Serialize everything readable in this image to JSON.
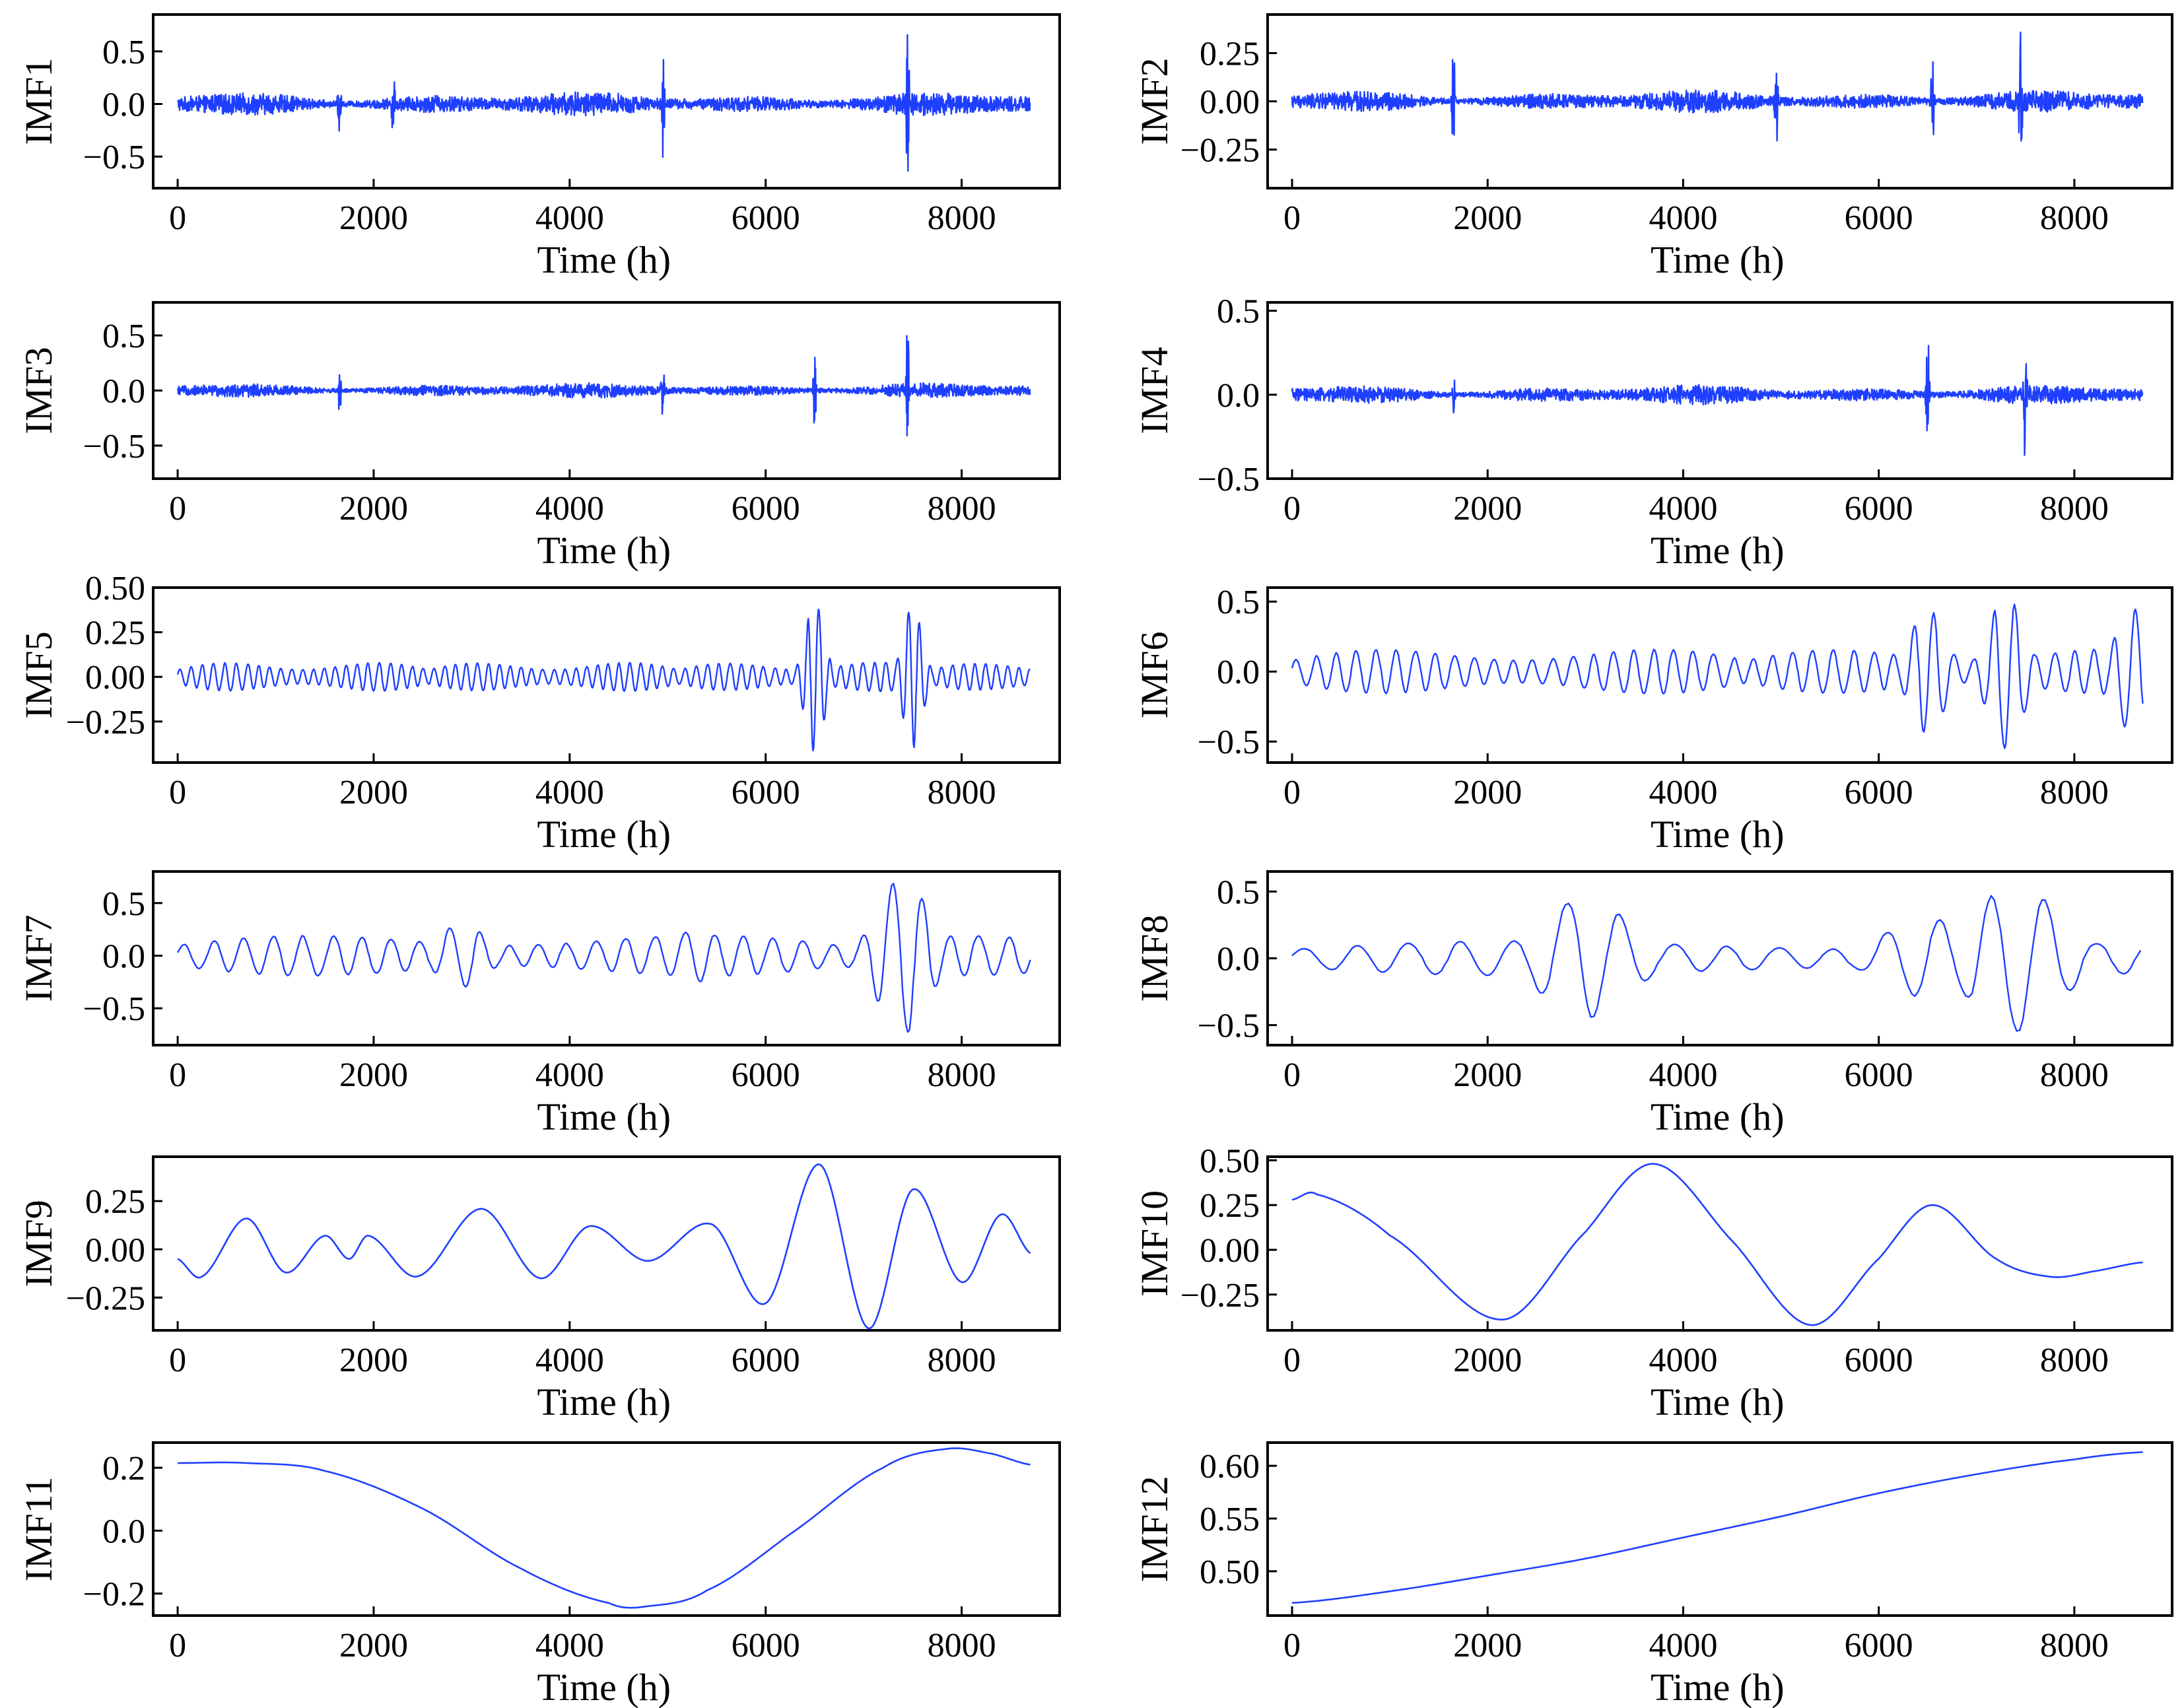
{
  "figure": {
    "line_color": "#1f3fff",
    "axis_color": "#000000"
  },
  "chart_data": [
    {
      "type": "line",
      "name": "imf1",
      "ylabel": "IMF1",
      "xlabel": "Time (h)",
      "xlim": [
        -250,
        9000
      ],
      "ylim": [
        -0.8,
        0.85
      ],
      "xticks": [
        0,
        2000,
        4000,
        6000,
        8000
      ],
      "yticks": [
        0.5,
        0.0,
        -0.5
      ],
      "ytick_labels": [
        "0.5",
        "0.0",
        "−0.5"
      ],
      "x_range": [
        0,
        8700
      ],
      "kind": "noise",
      "amplitude": 0.12,
      "bursts": [
        {
          "x": 1650,
          "a": 0.3
        },
        {
          "x": 2200,
          "a": 0.35
        },
        {
          "x": 4950,
          "a": 0.55
        },
        {
          "x": 7450,
          "a": 0.8
        }
      ]
    },
    {
      "type": "line",
      "name": "imf2",
      "ylabel": "IMF2",
      "xlabel": "Time (h)",
      "xlim": [
        -250,
        9000
      ],
      "ylim": [
        -0.45,
        0.45
      ],
      "xticks": [
        0,
        2000,
        4000,
        6000,
        8000
      ],
      "yticks": [
        0.25,
        0.0,
        -0.25
      ],
      "ytick_labels": [
        "0.25",
        "0.00",
        "−0.25"
      ],
      "x_range": [
        0,
        8700
      ],
      "kind": "noise",
      "amplitude": 0.06,
      "bursts": [
        {
          "x": 1650,
          "a": 0.35
        },
        {
          "x": 4950,
          "a": 0.3
        },
        {
          "x": 6550,
          "a": 0.3
        },
        {
          "x": 7450,
          "a": 0.42
        }
      ]
    },
    {
      "type": "line",
      "name": "imf3",
      "ylabel": "IMF3",
      "xlabel": "Time (h)",
      "xlim": [
        -250,
        9000
      ],
      "ylim": [
        -0.8,
        0.8
      ],
      "xticks": [
        0,
        2000,
        4000,
        6000,
        8000
      ],
      "yticks": [
        0.5,
        0.0,
        -0.5
      ],
      "ytick_labels": [
        "0.5",
        "0.0",
        "−0.5"
      ],
      "x_range": [
        0,
        8700
      ],
      "kind": "noise",
      "amplitude": 0.07,
      "bursts": [
        {
          "x": 1650,
          "a": 0.25
        },
        {
          "x": 4950,
          "a": 0.25
        },
        {
          "x": 6500,
          "a": 0.35
        },
        {
          "x": 7450,
          "a": 0.75
        }
      ]
    },
    {
      "type": "line",
      "name": "imf4",
      "ylabel": "IMF4",
      "xlabel": "Time (h)",
      "xlim": [
        -250,
        9000
      ],
      "ylim": [
        -0.5,
        0.55
      ],
      "xticks": [
        0,
        2000,
        4000,
        6000,
        8000
      ],
      "yticks": [
        0.5,
        0.0,
        -0.5
      ],
      "ytick_labels": [
        "0.5",
        "0.0",
        "−0.5"
      ],
      "x_range": [
        0,
        8700
      ],
      "kind": "noise",
      "amplitude": 0.06,
      "bursts": [
        {
          "x": 1650,
          "a": 0.15
        },
        {
          "x": 6500,
          "a": 0.42
        },
        {
          "x": 7500,
          "a": 0.5
        }
      ]
    },
    {
      "type": "line",
      "name": "imf5",
      "ylabel": "IMF5",
      "xlabel": "Time (h)",
      "xlim": [
        -250,
        9000
      ],
      "ylim": [
        -0.48,
        0.5
      ],
      "xticks": [
        0,
        2000,
        4000,
        6000,
        8000
      ],
      "yticks": [
        0.5,
        0.25,
        0.0,
        -0.25
      ],
      "ytick_labels": [
        "0.50",
        "0.25",
        "0.00",
        "−0.25"
      ],
      "x_range": [
        0,
        8700
      ],
      "kind": "osc",
      "amplitude": 0.09,
      "period": 110,
      "bursts": [
        {
          "x": 6500,
          "a": 0.42
        },
        {
          "x": 7500,
          "a": 0.4
        }
      ]
    },
    {
      "type": "line",
      "name": "imf6",
      "ylabel": "IMF6",
      "xlabel": "Time (h)",
      "xlim": [
        -250,
        9000
      ],
      "ylim": [
        -0.65,
        0.6
      ],
      "xticks": [
        0,
        2000,
        4000,
        6000,
        8000
      ],
      "yticks": [
        0.5,
        0.0,
        -0.5
      ],
      "ytick_labels": [
        "0.5",
        "0.0",
        "−0.5"
      ],
      "x_range": [
        0,
        8700
      ],
      "kind": "osc",
      "amplitude": 0.18,
      "period": 200,
      "bursts": [
        {
          "x": 6500,
          "a": 0.45
        },
        {
          "x": 7300,
          "a": 0.55
        },
        {
          "x": 8600,
          "a": 0.45
        }
      ]
    },
    {
      "type": "line",
      "name": "imf7",
      "ylabel": "IMF7",
      "xlabel": "Time (h)",
      "xlim": [
        -250,
        9000
      ],
      "ylim": [
        -0.85,
        0.8
      ],
      "xticks": [
        0,
        2000,
        4000,
        6000,
        8000
      ],
      "yticks": [
        0.5,
        0.0,
        -0.5
      ],
      "ytick_labels": [
        "0.5",
        "0.0",
        "−0.5"
      ],
      "x_range": [
        0,
        8700
      ],
      "kind": "osc",
      "amplitude": 0.22,
      "period": 290,
      "bursts": [
        {
          "x": 2900,
          "a": 0.3
        },
        {
          "x": 5300,
          "a": 0.25
        },
        {
          "x": 7400,
          "a": 0.75
        }
      ]
    },
    {
      "type": "line",
      "name": "imf8",
      "ylabel": "IMF8",
      "xlabel": "Time (h)",
      "xlim": [
        -250,
        9000
      ],
      "ylim": [
        -0.65,
        0.65
      ],
      "xticks": [
        0,
        2000,
        4000,
        6000,
        8000
      ],
      "yticks": [
        0.5,
        0.0,
        -0.5
      ],
      "ytick_labels": [
        "0.5",
        "0.0",
        "−0.5"
      ],
      "x_range": [
        0,
        8700
      ],
      "kind": "osc",
      "amplitude": 0.15,
      "period": 520,
      "bursts": [
        {
          "x": 3000,
          "a": 0.45
        },
        {
          "x": 6500,
          "a": 0.3
        },
        {
          "x": 7400,
          "a": 0.55
        }
      ]
    },
    {
      "type": "line",
      "name": "imf9",
      "ylabel": "IMF9",
      "xlabel": "Time (h)",
      "xlim": [
        -250,
        9000
      ],
      "ylim": [
        -0.42,
        0.48
      ],
      "xticks": [
        0,
        2000,
        4000,
        6000,
        8000
      ],
      "yticks": [
        0.25,
        0.0,
        -0.25
      ],
      "ytick_labels": [
        "0.25",
        "0.00",
        "−0.25"
      ],
      "x_range": [
        0,
        8700
      ],
      "kind": "smooth",
      "points": [
        [
          0,
          -0.05
        ],
        [
          250,
          -0.14
        ],
        [
          700,
          0.16
        ],
        [
          1100,
          -0.12
        ],
        [
          1500,
          0.07
        ],
        [
          1750,
          -0.05
        ],
        [
          1950,
          0.07
        ],
        [
          2450,
          -0.14
        ],
        [
          3100,
          0.21
        ],
        [
          3700,
          -0.15
        ],
        [
          4200,
          0.12
        ],
        [
          4800,
          -0.06
        ],
        [
          5450,
          0.13
        ],
        [
          6000,
          -0.28
        ],
        [
          6550,
          0.44
        ],
        [
          7050,
          -0.41
        ],
        [
          7500,
          0.31
        ],
        [
          8000,
          -0.17
        ],
        [
          8400,
          0.18
        ],
        [
          8700,
          -0.02
        ]
      ]
    },
    {
      "type": "line",
      "name": "imf10",
      "ylabel": "IMF10",
      "xlabel": "Time (h)",
      "xlim": [
        -250,
        9000
      ],
      "ylim": [
        -0.45,
        0.52
      ],
      "xticks": [
        0,
        2000,
        4000,
        6000,
        8000
      ],
      "yticks": [
        0.5,
        0.25,
        0.0,
        -0.25
      ],
      "ytick_labels": [
        "0.50",
        "0.25",
        "0.00",
        "−0.25"
      ],
      "x_range": [
        0,
        8700
      ],
      "kind": "smooth",
      "points": [
        [
          0,
          0.28
        ],
        [
          250,
          0.31
        ],
        [
          1000,
          0.08
        ],
        [
          2150,
          -0.39
        ],
        [
          3000,
          0.1
        ],
        [
          3700,
          0.48
        ],
        [
          4500,
          0.05
        ],
        [
          5300,
          -0.42
        ],
        [
          6000,
          -0.05
        ],
        [
          6550,
          0.25
        ],
        [
          7200,
          -0.05
        ],
        [
          7750,
          -0.15
        ],
        [
          8200,
          -0.12
        ],
        [
          8700,
          -0.07
        ]
      ]
    },
    {
      "type": "line",
      "name": "imf11",
      "ylabel": "IMF11",
      "xlabel": "Time (h)",
      "xlim": [
        -250,
        9000
      ],
      "ylim": [
        -0.27,
        0.28
      ],
      "xticks": [
        0,
        2000,
        4000,
        6000,
        8000
      ],
      "yticks": [
        0.2,
        0.0,
        -0.2
      ],
      "ytick_labels": [
        "0.2",
        "0.0",
        "−0.2"
      ],
      "x_range": [
        0,
        8700
      ],
      "kind": "smooth",
      "points": [
        [
          0,
          0.215
        ],
        [
          700,
          0.215
        ],
        [
          1500,
          0.19
        ],
        [
          2500,
          0.07
        ],
        [
          3500,
          -0.12
        ],
        [
          4400,
          -0.23
        ],
        [
          4800,
          -0.24
        ],
        [
          5400,
          -0.19
        ],
        [
          6300,
          0.0
        ],
        [
          7200,
          0.2
        ],
        [
          7850,
          0.26
        ],
        [
          8300,
          0.245
        ],
        [
          8700,
          0.21
        ]
      ]
    },
    {
      "type": "line",
      "name": "imf12",
      "ylabel": "IMF12",
      "xlabel": "Time (h)",
      "xlim": [
        -250,
        9000
      ],
      "ylim": [
        0.458,
        0.622
      ],
      "xticks": [
        0,
        2000,
        4000,
        6000,
        8000
      ],
      "yticks": [
        0.6,
        0.55,
        0.5
      ],
      "ytick_labels": [
        "0.60",
        "0.55",
        "0.50"
      ],
      "x_range": [
        0,
        8700
      ],
      "kind": "smooth",
      "points": [
        [
          0,
          0.47
        ],
        [
          1000,
          0.481
        ],
        [
          2000,
          0.496
        ],
        [
          3000,
          0.512
        ],
        [
          4000,
          0.532
        ],
        [
          5000,
          0.552
        ],
        [
          6000,
          0.574
        ],
        [
          7000,
          0.592
        ],
        [
          8000,
          0.606
        ],
        [
          8700,
          0.613
        ]
      ]
    }
  ]
}
